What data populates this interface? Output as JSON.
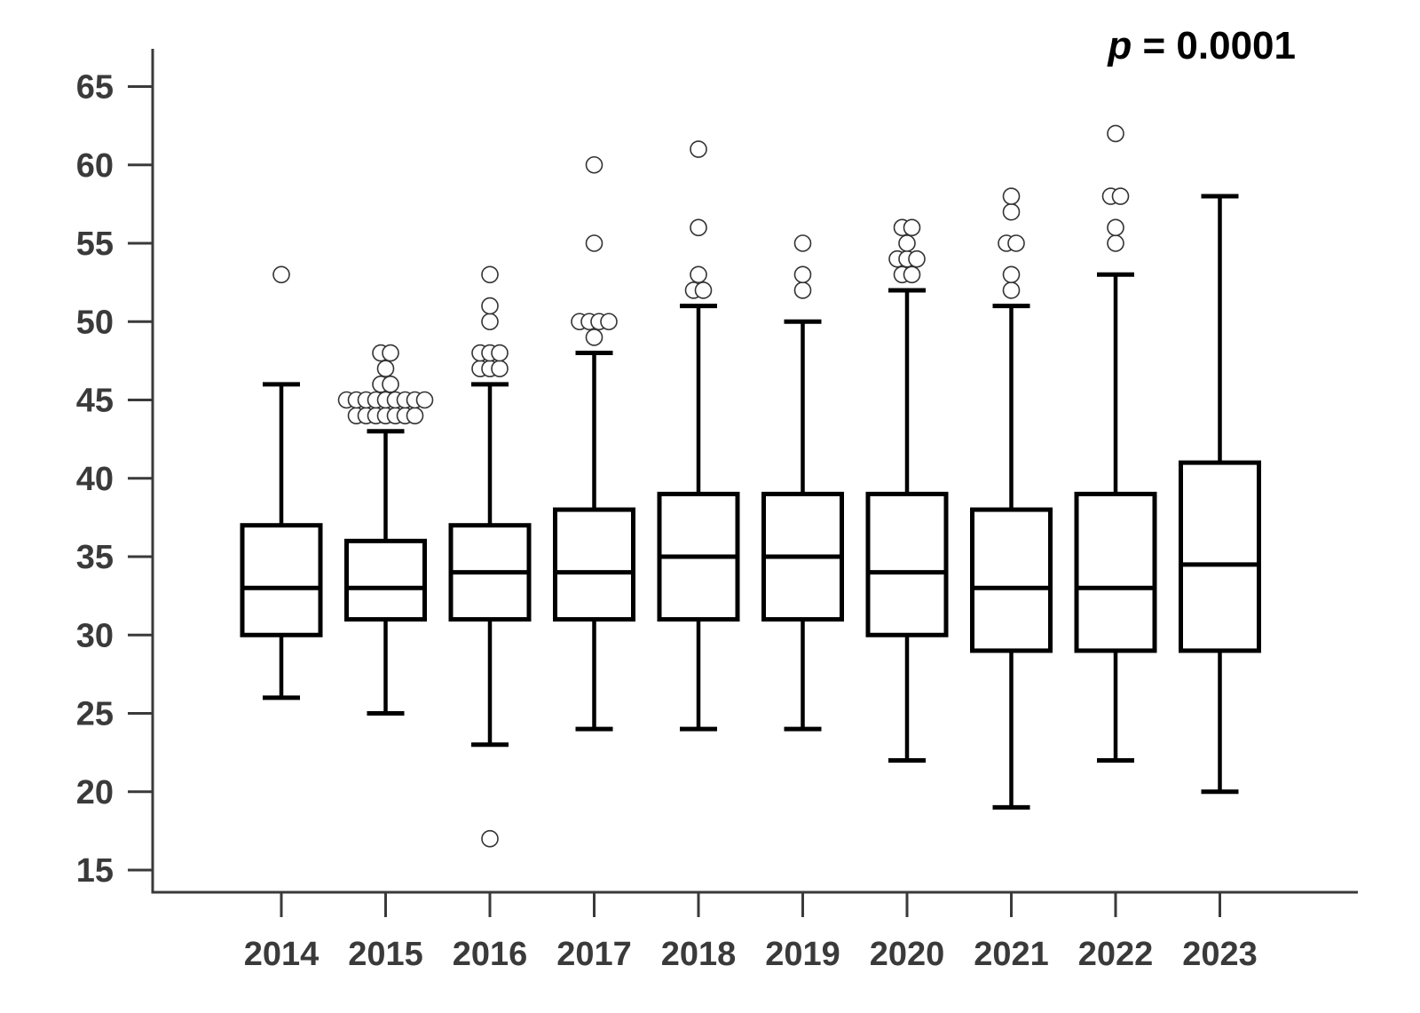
{
  "chart_data": {
    "type": "box",
    "title": "",
    "xlabel": "",
    "ylabel": "",
    "annotation": {
      "italic": "p",
      "rest": " = 0.0001"
    },
    "ylim": [
      13,
      66
    ],
    "yticks": [
      15,
      20,
      25,
      30,
      35,
      40,
      45,
      50,
      55,
      60,
      65
    ],
    "categories": [
      "2014",
      "2015",
      "2016",
      "2017",
      "2018",
      "2019",
      "2020",
      "2021",
      "2022",
      "2023"
    ],
    "boxes": [
      {
        "category": "2014",
        "whisker_low": 26,
        "q1": 30,
        "median": 33,
        "q3": 37,
        "whisker_high": 46,
        "outliers": [
          53
        ]
      },
      {
        "category": "2015",
        "whisker_low": 25,
        "q1": 31,
        "median": 33,
        "q3": 36,
        "whisker_high": 43,
        "outliers": [
          44,
          44,
          44,
          44,
          44,
          44,
          44,
          45,
          45,
          45,
          45,
          45,
          45,
          45,
          45,
          45,
          46,
          46,
          47,
          48,
          48
        ]
      },
      {
        "category": "2016",
        "whisker_low": 23,
        "q1": 31,
        "median": 34,
        "q3": 37,
        "whisker_high": 46,
        "outliers": [
          17,
          47,
          47,
          47,
          48,
          48,
          48,
          50,
          51,
          53
        ]
      },
      {
        "category": "2017",
        "whisker_low": 24,
        "q1": 31,
        "median": 34,
        "q3": 38,
        "whisker_high": 48,
        "outliers": [
          49,
          50,
          50,
          50,
          50,
          55,
          60
        ]
      },
      {
        "category": "2018",
        "whisker_low": 24,
        "q1": 31,
        "median": 35,
        "q3": 39,
        "whisker_high": 51,
        "outliers": [
          52,
          52,
          53,
          56,
          61
        ]
      },
      {
        "category": "2019",
        "whisker_low": 24,
        "q1": 31,
        "median": 35,
        "q3": 39,
        "whisker_high": 50,
        "outliers": [
          52,
          53,
          55
        ]
      },
      {
        "category": "2020",
        "whisker_low": 22,
        "q1": 30,
        "median": 34,
        "q3": 39,
        "whisker_high": 52,
        "outliers": [
          53,
          53,
          54,
          54,
          54,
          55,
          56,
          56
        ]
      },
      {
        "category": "2021",
        "whisker_low": 19,
        "q1": 29,
        "median": 33,
        "q3": 38,
        "whisker_high": 51,
        "outliers": [
          52,
          53,
          55,
          55,
          57,
          58
        ]
      },
      {
        "category": "2022",
        "whisker_low": 22,
        "q1": 29,
        "median": 33,
        "q3": 39,
        "whisker_high": 53,
        "outliers": [
          55,
          56,
          58,
          58,
          62
        ]
      },
      {
        "category": "2023",
        "whisker_low": 20,
        "q1": 29,
        "median": 34.5,
        "q3": 41,
        "whisker_high": 58,
        "outliers": []
      }
    ],
    "grid": false,
    "legend": "none",
    "colors": {
      "box_stroke": "#000000",
      "box_fill": "#ffffff",
      "axis": "#3a3a3a",
      "tick_text": "#3a3a3a"
    }
  }
}
